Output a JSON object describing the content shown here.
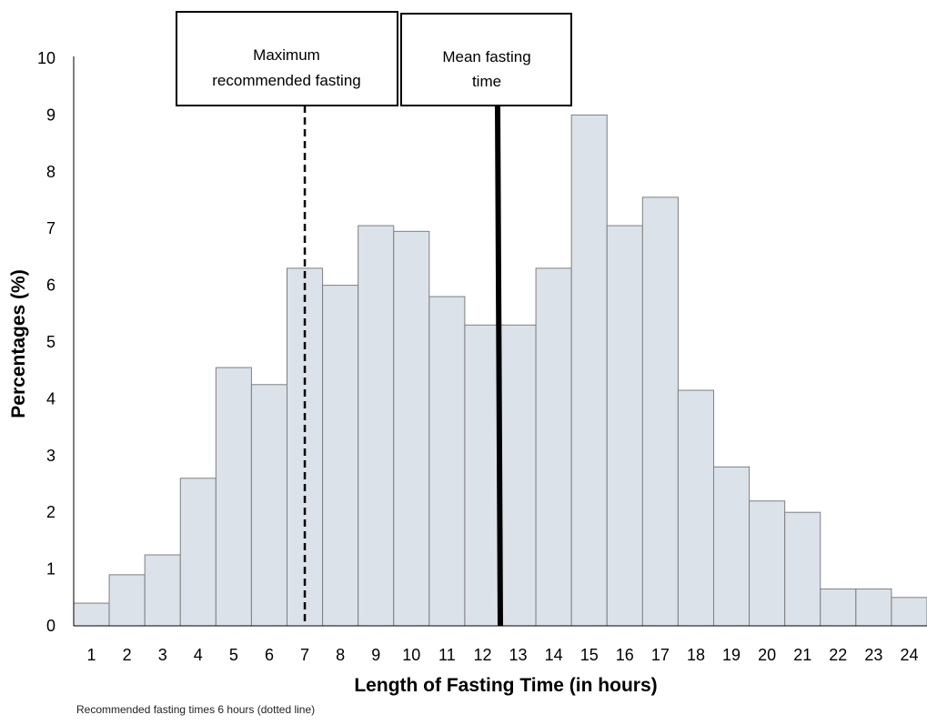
{
  "chart_data": {
    "type": "bar",
    "xlabel": "Length of Fasting Time (in hours)",
    "ylabel": "Percentages (%)",
    "ylim": [
      0,
      10
    ],
    "yticks": [
      "0",
      "1",
      "2",
      "3",
      "4",
      "5",
      "6",
      "7",
      "8",
      "9",
      "10"
    ],
    "categories": [
      "1",
      "2",
      "3",
      "4",
      "5",
      "6",
      "7",
      "8",
      "9",
      "10",
      "11",
      "12",
      "13",
      "14",
      "15",
      "16",
      "17",
      "18",
      "19",
      "20",
      "21",
      "22",
      "23",
      "24"
    ],
    "values": [
      0.4,
      0.9,
      1.25,
      2.6,
      4.55,
      4.25,
      6.3,
      6.0,
      7.05,
      6.95,
      5.8,
      5.3,
      5.3,
      6.3,
      9.0,
      7.05,
      7.55,
      4.15,
      2.8,
      2.2,
      2.0,
      0.65,
      0.65,
      0.5
    ],
    "bar_color": "#dce2ea",
    "bar_edge_color": "#7f7f7f",
    "grid": false,
    "annotations": {
      "max_fasting": {
        "lines": [
          "Maximum",
          "recommended fasting"
        ],
        "x_value": 6.5,
        "style": "dashed"
      },
      "mean_fasting": {
        "lines": [
          "Mean fasting",
          "time"
        ],
        "x_value": 12.0,
        "style": "solid"
      }
    }
  },
  "caption": "Recommended fasting times 6 hours (dotted line)"
}
